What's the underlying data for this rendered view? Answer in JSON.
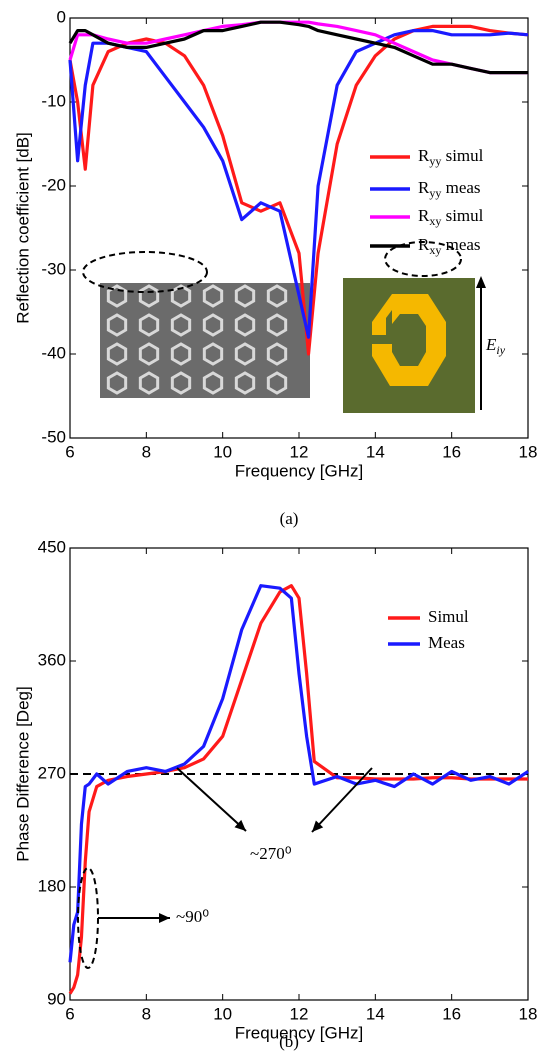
{
  "chart_data": [
    {
      "type": "line",
      "caption": "(a)",
      "x_label": "Frequency [GHz]",
      "y_label": "Reflection coefficient [dB]",
      "x": [
        6,
        6.2,
        6.4,
        6.6,
        7,
        7.5,
        8,
        8.5,
        9,
        9.5,
        10,
        10.5,
        11,
        11.5,
        12,
        12.25,
        12.5,
        13,
        13.5,
        14,
        14.5,
        15,
        15.5,
        16,
        16.5,
        17,
        17.5,
        18
      ],
      "series": [
        {
          "name": "Ryy simul",
          "color": "#ff1a1a",
          "values": [
            -5,
            -10,
            -18,
            -8,
            -4,
            -3,
            -2.5,
            -3,
            -4.5,
            -8,
            -14,
            -22,
            -23,
            -22,
            -28,
            -40,
            -28,
            -15,
            -8,
            -4.5,
            -2.5,
            -1.5,
            -1,
            -1,
            -1,
            -1.5,
            -1.8,
            -2
          ]
        },
        {
          "name": "Ryy meas",
          "color": "#1a1aff",
          "values": [
            -5,
            -17,
            -8,
            -3,
            -3,
            -3.5,
            -4,
            -7,
            -10,
            -13,
            -17,
            -24,
            -22,
            -23,
            -33,
            -38,
            -20,
            -8,
            -4,
            -3,
            -2,
            -1.5,
            -1.5,
            -2,
            -2,
            -2,
            -1.8,
            -2
          ]
        },
        {
          "name": "Rxy simul",
          "color": "#ff00ff",
          "values": [
            -5,
            -2,
            -2,
            -2,
            -2.5,
            -3,
            -3,
            -2.5,
            -2,
            -1.5,
            -1,
            -0.8,
            -0.5,
            -0.5,
            -0.5,
            -0.5,
            -0.7,
            -1,
            -1.5,
            -2,
            -3,
            -4,
            -5,
            -5.5,
            -6,
            -6.5,
            -6.5,
            -6.5
          ]
        },
        {
          "name": "Rxy meas",
          "color": "#000000",
          "values": [
            -3,
            -1.5,
            -1.5,
            -2,
            -3,
            -3.5,
            -3.5,
            -3,
            -2.5,
            -1.5,
            -1.5,
            -1,
            -0.5,
            -0.5,
            -0.8,
            -1,
            -1.5,
            -2,
            -2.5,
            -3,
            -3.5,
            -4.5,
            -5.5,
            -5.5,
            -6,
            -6.5,
            -6.5,
            -6.5
          ]
        }
      ],
      "xlim": [
        6,
        18
      ],
      "xticks": [
        6,
        8,
        10,
        12,
        14,
        16,
        18
      ],
      "ylim": [
        -50,
        0
      ],
      "yticks": [
        0,
        -10,
        -20,
        -30,
        -40,
        -50
      ],
      "field_label": "Eiy"
    },
    {
      "type": "line",
      "caption": "(b)",
      "x_label": "Frequency [GHz]",
      "y_label": "Phase Difference [Deg]",
      "x": [
        6,
        6.1,
        6.2,
        6.3,
        6.4,
        6.5,
        6.7,
        7,
        7.5,
        8,
        8.5,
        9,
        9.5,
        10,
        10.5,
        11,
        11.5,
        11.8,
        12,
        12.2,
        12.4,
        13,
        13.5,
        14,
        14.5,
        15,
        15.5,
        16,
        16.5,
        17,
        17.5,
        18
      ],
      "series": [
        {
          "name": "Simul",
          "color": "#ff1a1a",
          "values": [
            95,
            100,
            110,
            140,
            200,
            240,
            260,
            265,
            268,
            270,
            272,
            275,
            282,
            300,
            345,
            390,
            415,
            420,
            410,
            350,
            280,
            267,
            267,
            266,
            266,
            266,
            267,
            267,
            266,
            266,
            266,
            266
          ]
        },
        {
          "name": "Meas",
          "color": "#1a1aff",
          "values": [
            120,
            150,
            160,
            230,
            260,
            262,
            270,
            262,
            272,
            275,
            272,
            278,
            292,
            330,
            385,
            420,
            418,
            410,
            350,
            300,
            262,
            268,
            262,
            265,
            260,
            270,
            262,
            272,
            265,
            268,
            262,
            272
          ]
        }
      ],
      "xlim": [
        6,
        18
      ],
      "xticks": [
        6,
        8,
        10,
        12,
        14,
        16,
        18
      ],
      "ylim": [
        90,
        450
      ],
      "yticks": [
        90,
        180,
        270,
        360,
        450
      ],
      "reference_line": 270,
      "annotations": [
        "~270⁰",
        "~90⁰"
      ]
    }
  ]
}
